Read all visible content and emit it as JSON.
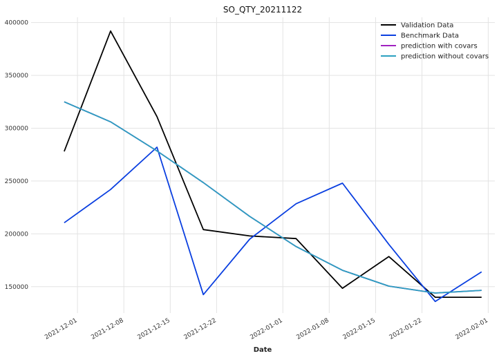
{
  "chart_data": {
    "type": "line",
    "title": "SO_QTY_20211122",
    "xlabel": "Date",
    "ylabel": "",
    "xlim": [
      "2021-11-24",
      "2022-02-02"
    ],
    "ylim": [
      125000,
      405000
    ],
    "x_ticks": [
      "2021-12-01",
      "2021-12-08",
      "2021-12-15",
      "2021-12-22",
      "2022-01-01",
      "2022-01-08",
      "2022-01-15",
      "2022-01-22",
      "2022-02-01"
    ],
    "y_ticks": [
      150000,
      200000,
      250000,
      300000,
      350000,
      400000
    ],
    "y_tick_labels": [
      "150000",
      "200000",
      "250000",
      "300000",
      "350000",
      "400000"
    ],
    "grid": true,
    "legend_position": "top-right",
    "series": [
      {
        "name": "Validation Data",
        "color": "#000000",
        "x": [
          "2021-11-29",
          "2021-12-06",
          "2021-12-13",
          "2021-12-20",
          "2021-12-27",
          "2022-01-03",
          "2022-01-10",
          "2022-01-17",
          "2022-01-24",
          "2022-01-31"
        ],
        "y": [
          278000,
          392000,
          311000,
          204000,
          198000,
          195500,
          148500,
          178500,
          140000,
          140000
        ]
      },
      {
        "name": "Benchmark Data",
        "color": "#0a3fe0",
        "x": [
          "2021-11-29",
          "2021-12-06",
          "2021-12-13",
          "2021-12-20",
          "2021-12-27",
          "2022-01-03",
          "2022-01-10",
          "2022-01-17",
          "2022-01-24",
          "2022-01-31"
        ],
        "y": [
          210500,
          242000,
          282000,
          142500,
          195000,
          228500,
          248000,
          190000,
          136000,
          164000
        ]
      },
      {
        "name": "prediction with covars",
        "color": "#a020c0",
        "x": [
          "2021-11-29",
          "2021-12-06",
          "2021-12-13",
          "2021-12-20",
          "2021-12-27",
          "2022-01-03",
          "2022-01-10",
          "2022-01-17",
          "2022-01-24",
          "2022-01-31"
        ],
        "y": [
          325000,
          306000,
          278500,
          248500,
          216500,
          188000,
          165500,
          150500,
          144000,
          146500
        ]
      },
      {
        "name": "prediction without covars",
        "color": "#2aa0c0",
        "x": [
          "2021-11-29",
          "2021-12-06",
          "2021-12-13",
          "2021-12-20",
          "2021-12-27",
          "2022-01-03",
          "2022-01-10",
          "2022-01-17",
          "2022-01-24",
          "2022-01-31"
        ],
        "y": [
          325000,
          306000,
          278500,
          248500,
          216500,
          188000,
          165500,
          150500,
          144000,
          146500
        ]
      }
    ]
  }
}
